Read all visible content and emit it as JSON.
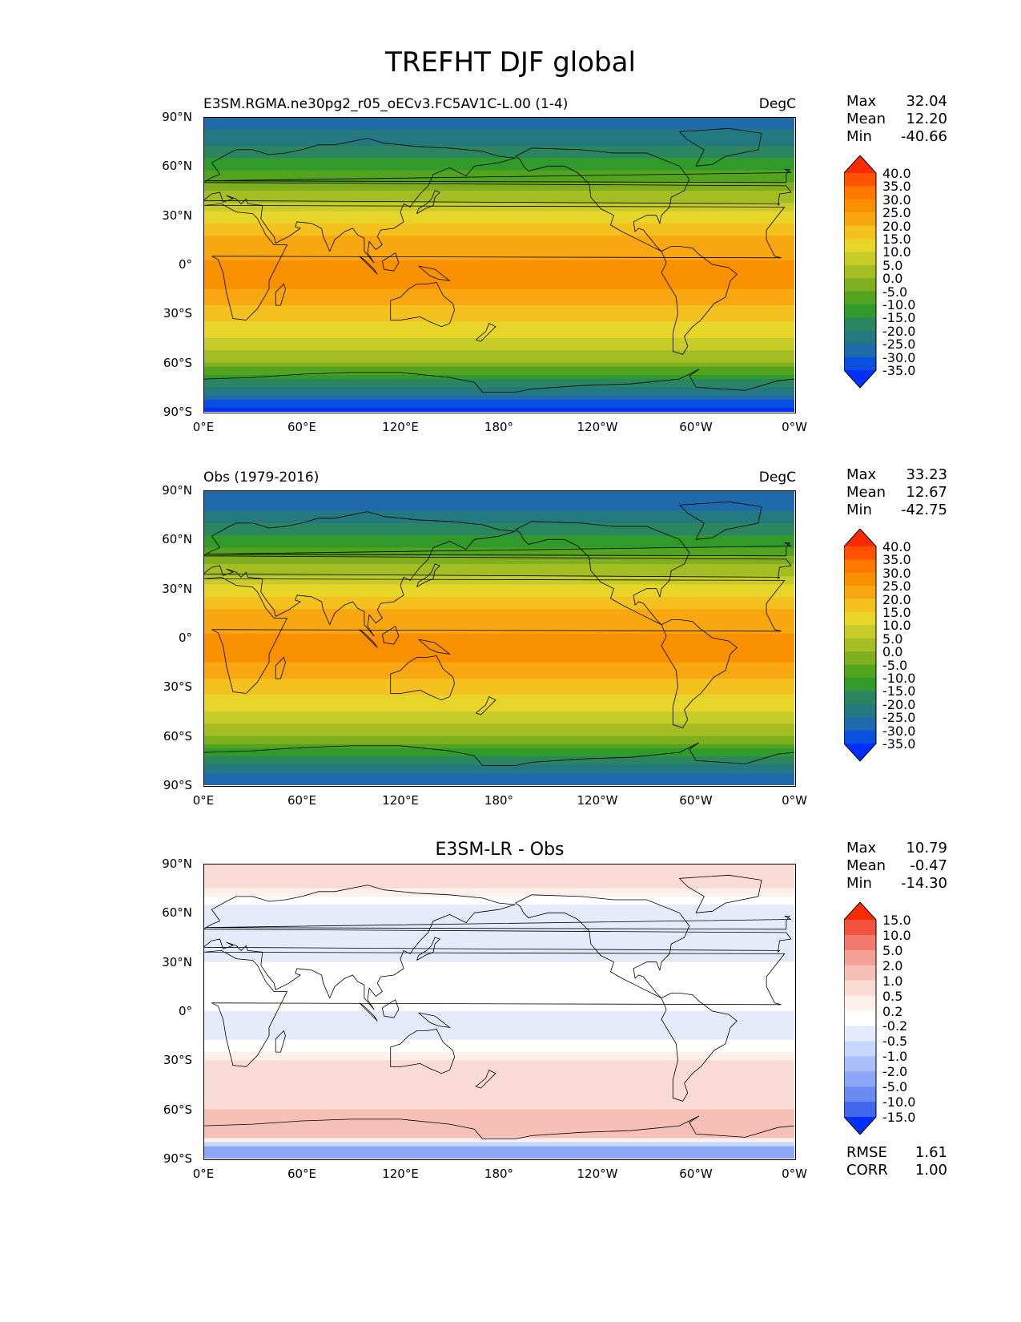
{
  "figure_title": "TREFHT DJF global",
  "axes": {
    "y_ticks": [
      "90°N",
      "60°N",
      "30°N",
      "0°",
      "30°S",
      "60°S",
      "90°S"
    ],
    "x_ticks": [
      "0°E",
      "60°E",
      "120°E",
      "180°",
      "120°W",
      "60°W",
      "0°W"
    ]
  },
  "panels": [
    {
      "left_title": "E3SM.RGMA.ne30pg2_r05_oECv3.FC5AV1C-L.00 (1-4)",
      "center_title": "",
      "units": "DegC",
      "stats": {
        "Max": "32.04",
        "Mean": "12.20",
        "Min": "-40.66"
      },
      "colorbar": {
        "labels": [
          "40.0",
          "35.0",
          "30.0",
          "25.0",
          "20.0",
          "15.0",
          "10.0",
          "5.0",
          "0.0",
          "-5.0",
          "-10.0",
          "-15.0",
          "-20.0",
          "-25.0",
          "-30.0",
          "-35.0"
        ],
        "colors": [
          "#ff2a00",
          "#ff5200",
          "#ff7800",
          "#f99000",
          "#f9a710",
          "#f4c11e",
          "#e7d52a",
          "#c7cc28",
          "#a3bd22",
          "#7fae1e",
          "#52a31e",
          "#309a2a",
          "#2a8560",
          "#247880",
          "#1f6aaa",
          "#0a50e0",
          "#0030ff"
        ]
      }
    },
    {
      "left_title": "Obs (1979-2016)",
      "center_title": "",
      "units": "DegC",
      "stats": {
        "Max": "33.23",
        "Mean": "12.67",
        "Min": "-42.75"
      },
      "colorbar": {
        "labels": [
          "40.0",
          "35.0",
          "30.0",
          "25.0",
          "20.0",
          "15.0",
          "10.0",
          "5.0",
          "0.0",
          "-5.0",
          "-10.0",
          "-15.0",
          "-20.0",
          "-25.0",
          "-30.0",
          "-35.0"
        ],
        "colors": [
          "#ff2a00",
          "#ff5200",
          "#ff7800",
          "#f99000",
          "#f9a710",
          "#f4c11e",
          "#e7d52a",
          "#c7cc28",
          "#a3bd22",
          "#7fae1e",
          "#52a31e",
          "#309a2a",
          "#2a8560",
          "#247880",
          "#1f6aaa",
          "#0a50e0",
          "#0030ff"
        ]
      }
    },
    {
      "left_title": "",
      "center_title": "E3SM-LR - Obs",
      "units": "",
      "stats": {
        "Max": "10.79",
        "Mean": "-0.47",
        "Min": "-14.30"
      },
      "colorbar": {
        "labels": [
          "15.0",
          "10.0",
          "5.0",
          "2.0",
          "1.0",
          "0.5",
          "0.2",
          "-0.2",
          "-0.5",
          "-1.0",
          "-2.0",
          "-5.0",
          "-10.0",
          "-15.0"
        ],
        "colors": [
          "#ff2a00",
          "#f2533f",
          "#f27a6c",
          "#f4a094",
          "#f7c0b7",
          "#fadad4",
          "#fdefeb",
          "#ffffff",
          "#e5ebfb",
          "#c8d6fb",
          "#aabefa",
          "#8ca7f7",
          "#6a8cf2",
          "#3f68ef",
          "#0030ff"
        ]
      },
      "rmse": {
        "RMSE": "1.61",
        "CORR": "1.00"
      }
    }
  ],
  "chart_data": [
    {
      "type": "heatmap",
      "title": "E3SM.RGMA.ne30pg2_r05_oECv3.FC5AV1C-L.00 (1-4)",
      "variable": "TREFHT DJF",
      "units": "DegC",
      "x_range": [
        0,
        360
      ],
      "y_range": [
        -90,
        90
      ],
      "zonal_profile": {
        "lat": [
          90,
          75,
          60,
          45,
          30,
          15,
          0,
          -15,
          -30,
          -45,
          -60,
          -75,
          -90
        ],
        "value": [
          -28,
          -22,
          -12,
          0,
          12,
          22,
          26,
          25,
          18,
          10,
          0,
          -20,
          -38
        ]
      },
      "max": 32.04,
      "mean": 12.2,
      "min": -40.66
    },
    {
      "type": "heatmap",
      "title": "Obs (1979-2016)",
      "variable": "TREFHT DJF",
      "units": "DegC",
      "x_range": [
        0,
        360
      ],
      "y_range": [
        -90,
        90
      ],
      "zonal_profile": {
        "lat": [
          90,
          75,
          60,
          45,
          30,
          15,
          0,
          -15,
          -30,
          -45,
          -60,
          -75,
          -90
        ],
        "value": [
          -28,
          -24,
          -14,
          -1,
          12,
          22,
          26,
          25,
          18,
          10,
          0,
          -18,
          -30
        ]
      },
      "max": 33.23,
      "mean": 12.67,
      "min": -42.75
    },
    {
      "type": "heatmap",
      "title": "E3SM-LR - Obs",
      "variable": "TREFHT DJF difference",
      "units": "DegC",
      "x_range": [
        0,
        360
      ],
      "y_range": [
        -90,
        90
      ],
      "zonal_profile": {
        "lat": [
          90,
          75,
          60,
          45,
          30,
          15,
          0,
          -15,
          -30,
          -45,
          -60,
          -75,
          -90
        ],
        "value": [
          1.0,
          0.5,
          -0.5,
          -0.5,
          -0.2,
          0.0,
          -0.2,
          -0.3,
          0.5,
          0.5,
          1.0,
          2.0,
          -5.0
        ]
      },
      "max": 10.79,
      "mean": -0.47,
      "min": -14.3,
      "rmse": 1.61,
      "corr": 1.0
    }
  ]
}
